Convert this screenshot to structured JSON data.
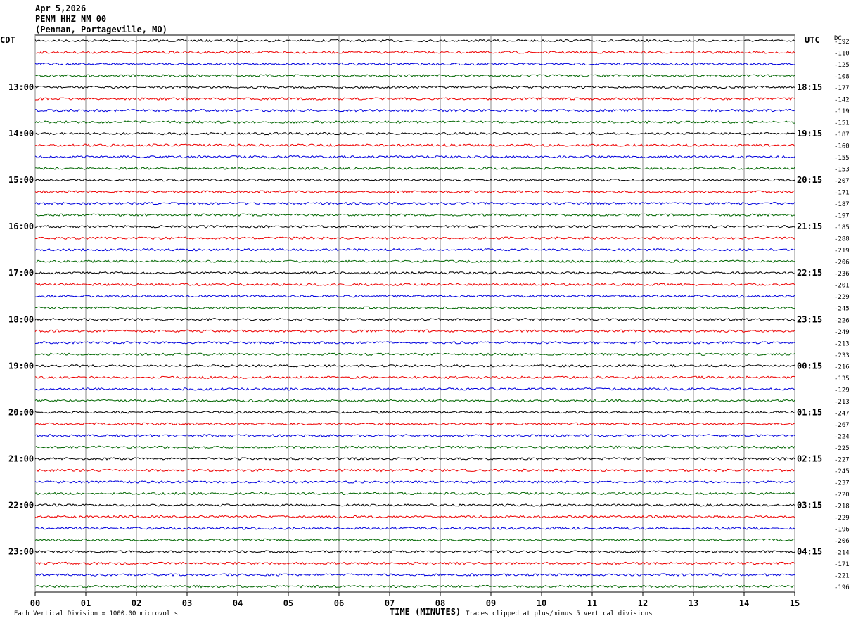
{
  "header": {
    "date": "Apr 5,2026",
    "station": "PENM HHZ NM 00",
    "location": "(Penman, Portageville, MO)"
  },
  "left_axis": {
    "zone": "CDT",
    "labels": [
      "13:00",
      "14:00",
      "15:00",
      "16:00",
      "17:00",
      "18:00",
      "19:00",
      "20:00",
      "21:00",
      "22:00",
      "23:00"
    ]
  },
  "right_axis": {
    "zone": "UTC",
    "labels": [
      "18:15",
      "19:15",
      "20:15",
      "21:15",
      "22:15",
      "23:15",
      "00:15",
      "01:15",
      "02:15",
      "03:15",
      "04:15"
    ]
  },
  "dc": {
    "title": "DC",
    "offsets": [
      "-192",
      "-110",
      "-125",
      "-108",
      "-177",
      "-142",
      "-119",
      "-151",
      "-187",
      "-160",
      "-155",
      "-153",
      "-207",
      "-171",
      "-187",
      "-197",
      "-185",
      "-288",
      "-219",
      "-206",
      "-236",
      "-201",
      "-229",
      "-245",
      "-226",
      "-249",
      "-213",
      "-233",
      "-216",
      "-135",
      "-129",
      "-213",
      "-247",
      "-267",
      "-224",
      "-225",
      "-227",
      "-245",
      "-237",
      "-220",
      "-218",
      "-229",
      "-196",
      "-206",
      "-214",
      "-171",
      "-221",
      "-196"
    ]
  },
  "x_axis": {
    "labels": [
      "00",
      "01",
      "02",
      "03",
      "04",
      "05",
      "06",
      "07",
      "08",
      "09",
      "10",
      "11",
      "12",
      "13",
      "14",
      "15"
    ],
    "title": "TIME (MINUTES)"
  },
  "footer": {
    "scale": "Each Vertical Division = 1000.00 microvolts",
    "clip": "Traces clipped at plus/minus 5 vertical divisions"
  }
}
